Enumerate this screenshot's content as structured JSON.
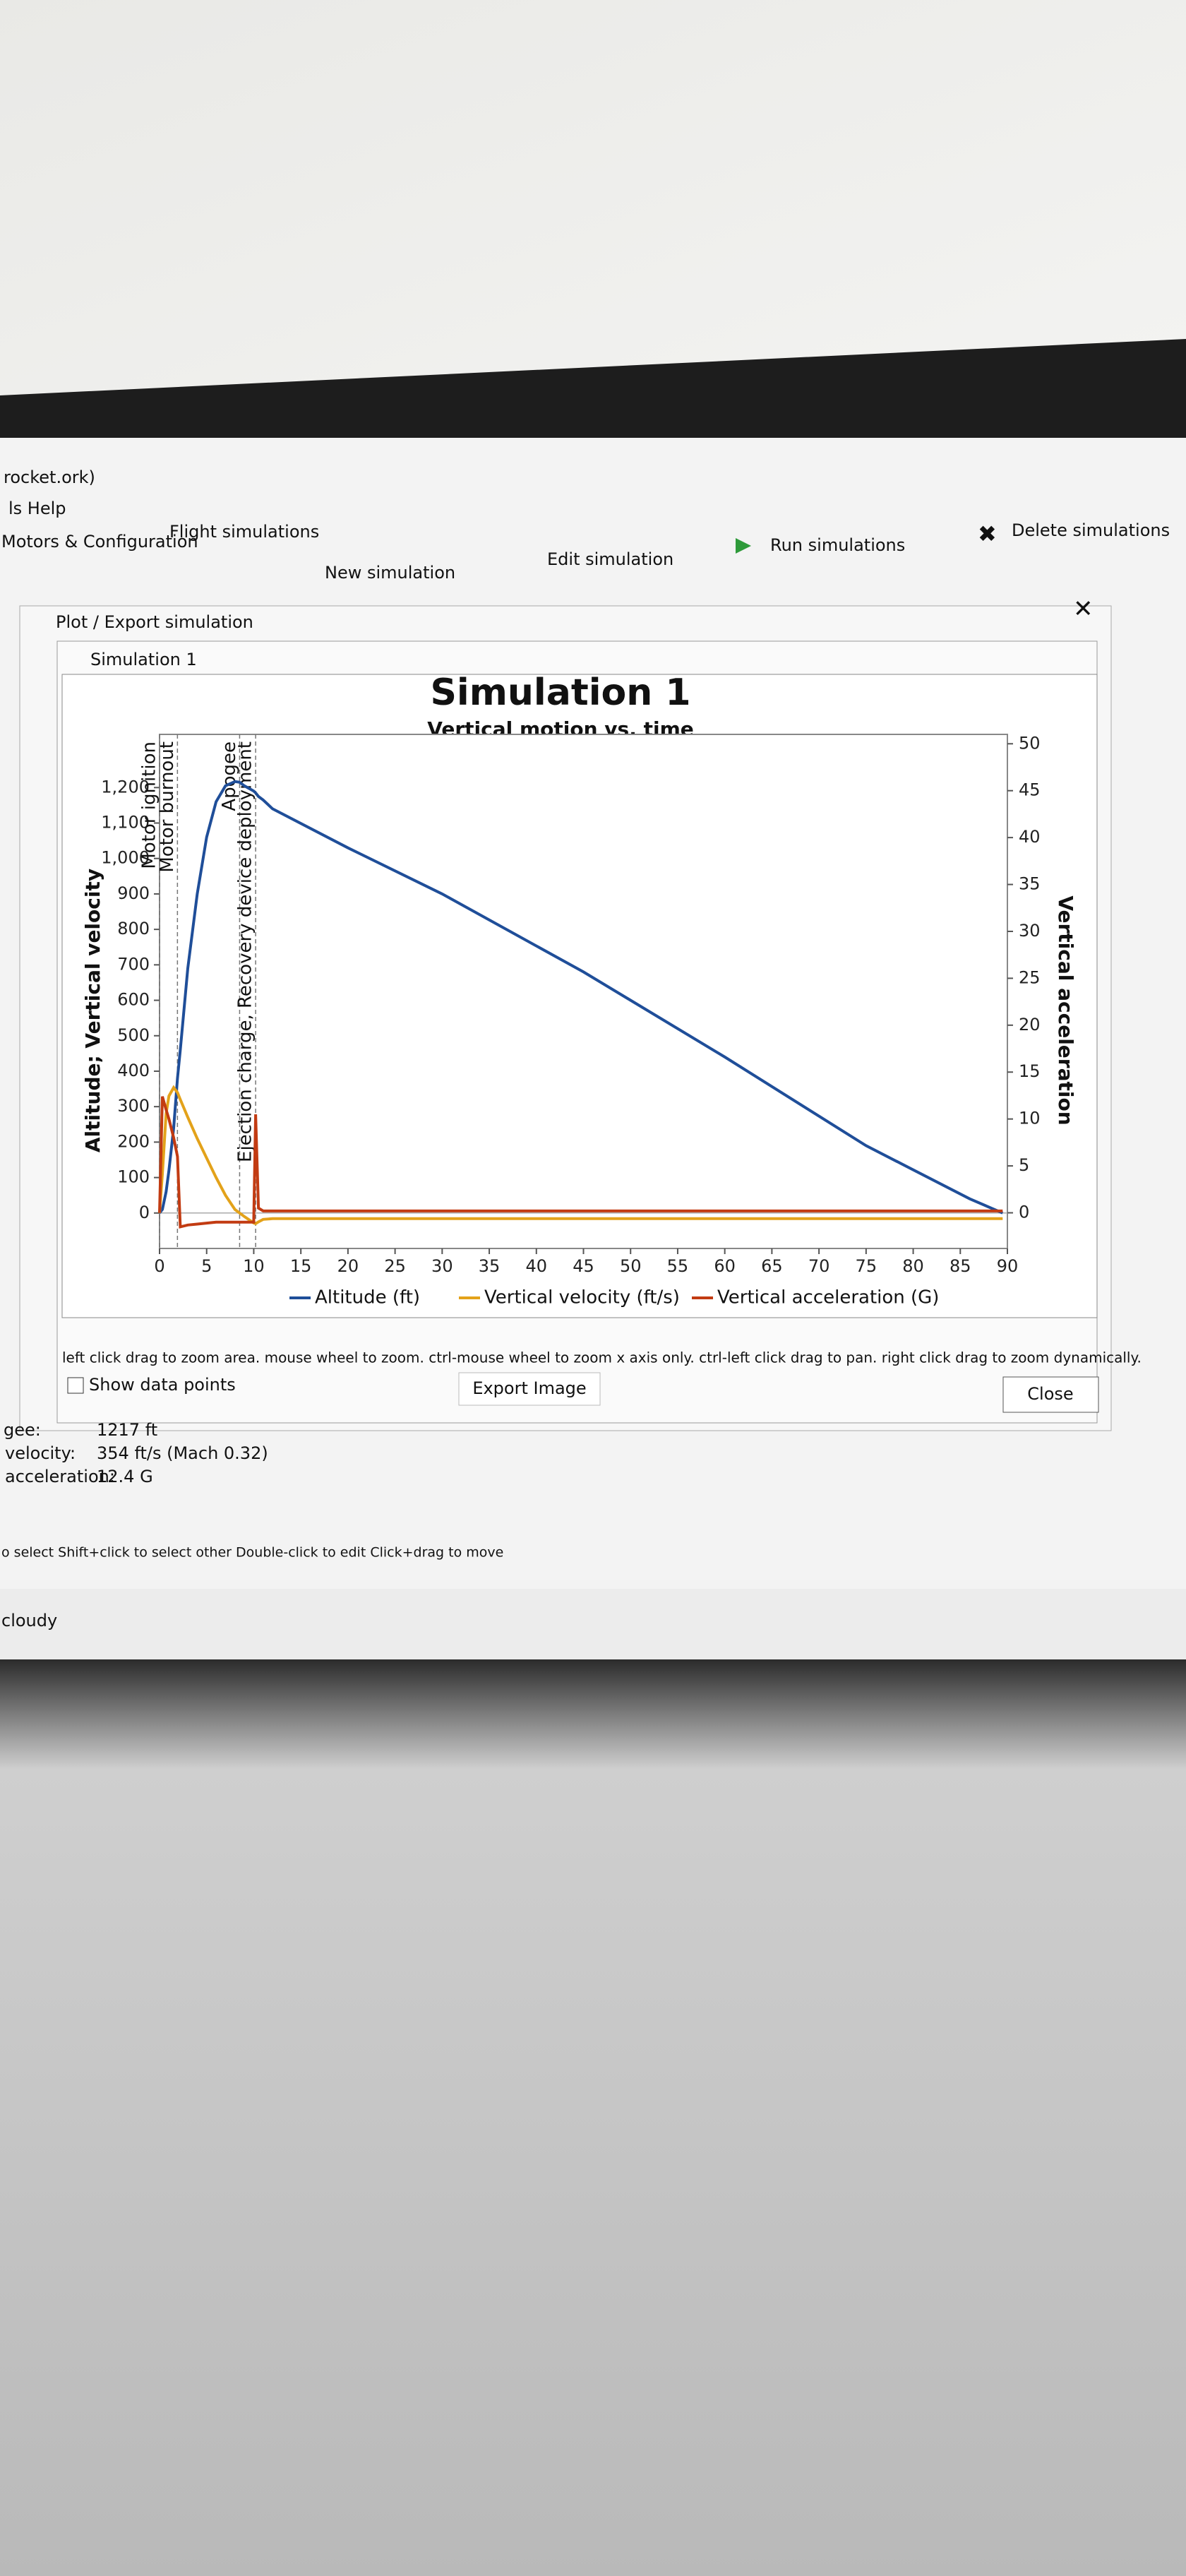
{
  "ui": {
    "app_title": "rocket.ork)",
    "menu": "ls  Help",
    "tabs": [
      "Motors & Configuration",
      "Flight simulations"
    ],
    "toolbar": [
      "New simulation",
      "Edit simulation",
      "Run simulations",
      "Delete simulations"
    ],
    "dialog_title": "Plot / Export simulation",
    "window_title": "Simulation 1",
    "hint": "left click drag to zoom area. mouse wheel to zoom. ctrl-mouse wheel to zoom x axis only. ctrl-left click drag to pan.  right click drag to zoom dynamically.",
    "show_points": "Show data points",
    "export": "Export Image",
    "close": "Close",
    "stats": [
      [
        "gee:",
        "1217 ft"
      ],
      [
        "velocity:",
        "354 ft/s  (Mach 0.32)"
      ],
      [
        "acceleration:",
        "12.4 G"
      ]
    ],
    "status": "o select   Shift+click to select other   Double-click to edit   Click+drag to move",
    "weather": "cloudy"
  },
  "chart_data": {
    "type": "line",
    "title": "Simulation 1",
    "subtitle": "Vertical motion vs. time",
    "y_label": "Altitude; Vertical velocity",
    "y2_label": "Vertical acceleration",
    "x": [
      0,
      0.3,
      0.7,
      1,
      1.5,
      1.9,
      2.2,
      3,
      4,
      5,
      6,
      7,
      8,
      8.5,
      9,
      10,
      10.2,
      10.5,
      11,
      12,
      20,
      30,
      45,
      60,
      75,
      86,
      89.5
    ],
    "series": [
      {
        "name": "Altitude (ft)",
        "color": "#1f4e99",
        "values": [
          0,
          10,
          60,
          120,
          240,
          380,
          460,
          690,
          900,
          1060,
          1160,
          1205,
          1217,
          1215,
          1205,
          1190,
          1185,
          1175,
          1165,
          1140,
          1030,
          900,
          680,
          440,
          190,
          40,
          0
        ]
      },
      {
        "name": "Vertical velocity (ft/s)",
        "color": "#e3a21a",
        "values": [
          0,
          110,
          280,
          330,
          354,
          340,
          320,
          270,
          210,
          155,
          100,
          50,
          10,
          0,
          -10,
          -28,
          -30,
          -25,
          -18,
          -16,
          -16,
          -16,
          -16,
          -16,
          -16,
          -16,
          -16
        ]
      },
      {
        "name": "Vertical acceleration (G)",
        "color": "#c23b12",
        "axis": "y2",
        "values": [
          0,
          12.4,
          11,
          10,
          8,
          6,
          -1.5,
          -1.3,
          -1.2,
          -1.1,
          -1,
          -1,
          -1,
          -1,
          -1,
          -1,
          10.5,
          0.5,
          0.2,
          0.2,
          0.2,
          0.2,
          0.2,
          0.2,
          0.2,
          0.2,
          0.2
        ]
      }
    ],
    "events": [
      {
        "label": "Motor ignition",
        "x": 0
      },
      {
        "label": "Motor burnout",
        "x": 1.9
      },
      {
        "label": "Apogee",
        "x": 8.5
      },
      {
        "label": "Ejection charge, Recovery device deployment",
        "x": 10.2
      }
    ],
    "xlim": [
      0,
      90
    ],
    "xticks": [
      0,
      5,
      10,
      15,
      20,
      25,
      30,
      35,
      40,
      45,
      50,
      55,
      60,
      65,
      70,
      75,
      80,
      85,
      90
    ],
    "ylim": [
      -100,
      1350
    ],
    "yticks": [
      0,
      100,
      200,
      300,
      400,
      500,
      600,
      700,
      800,
      900,
      {
        "value": 1000,
        "label": "1,000"
      },
      {
        "value": 1100,
        "label": "1,100"
      },
      {
        "value": 1200,
        "label": "1,200"
      }
    ],
    "y2lim": [
      -3.8,
      51
    ],
    "y2ticks": [
      0,
      5,
      10,
      15,
      20,
      25,
      30,
      35,
      40,
      45,
      50
    ],
    "grid": false
  }
}
